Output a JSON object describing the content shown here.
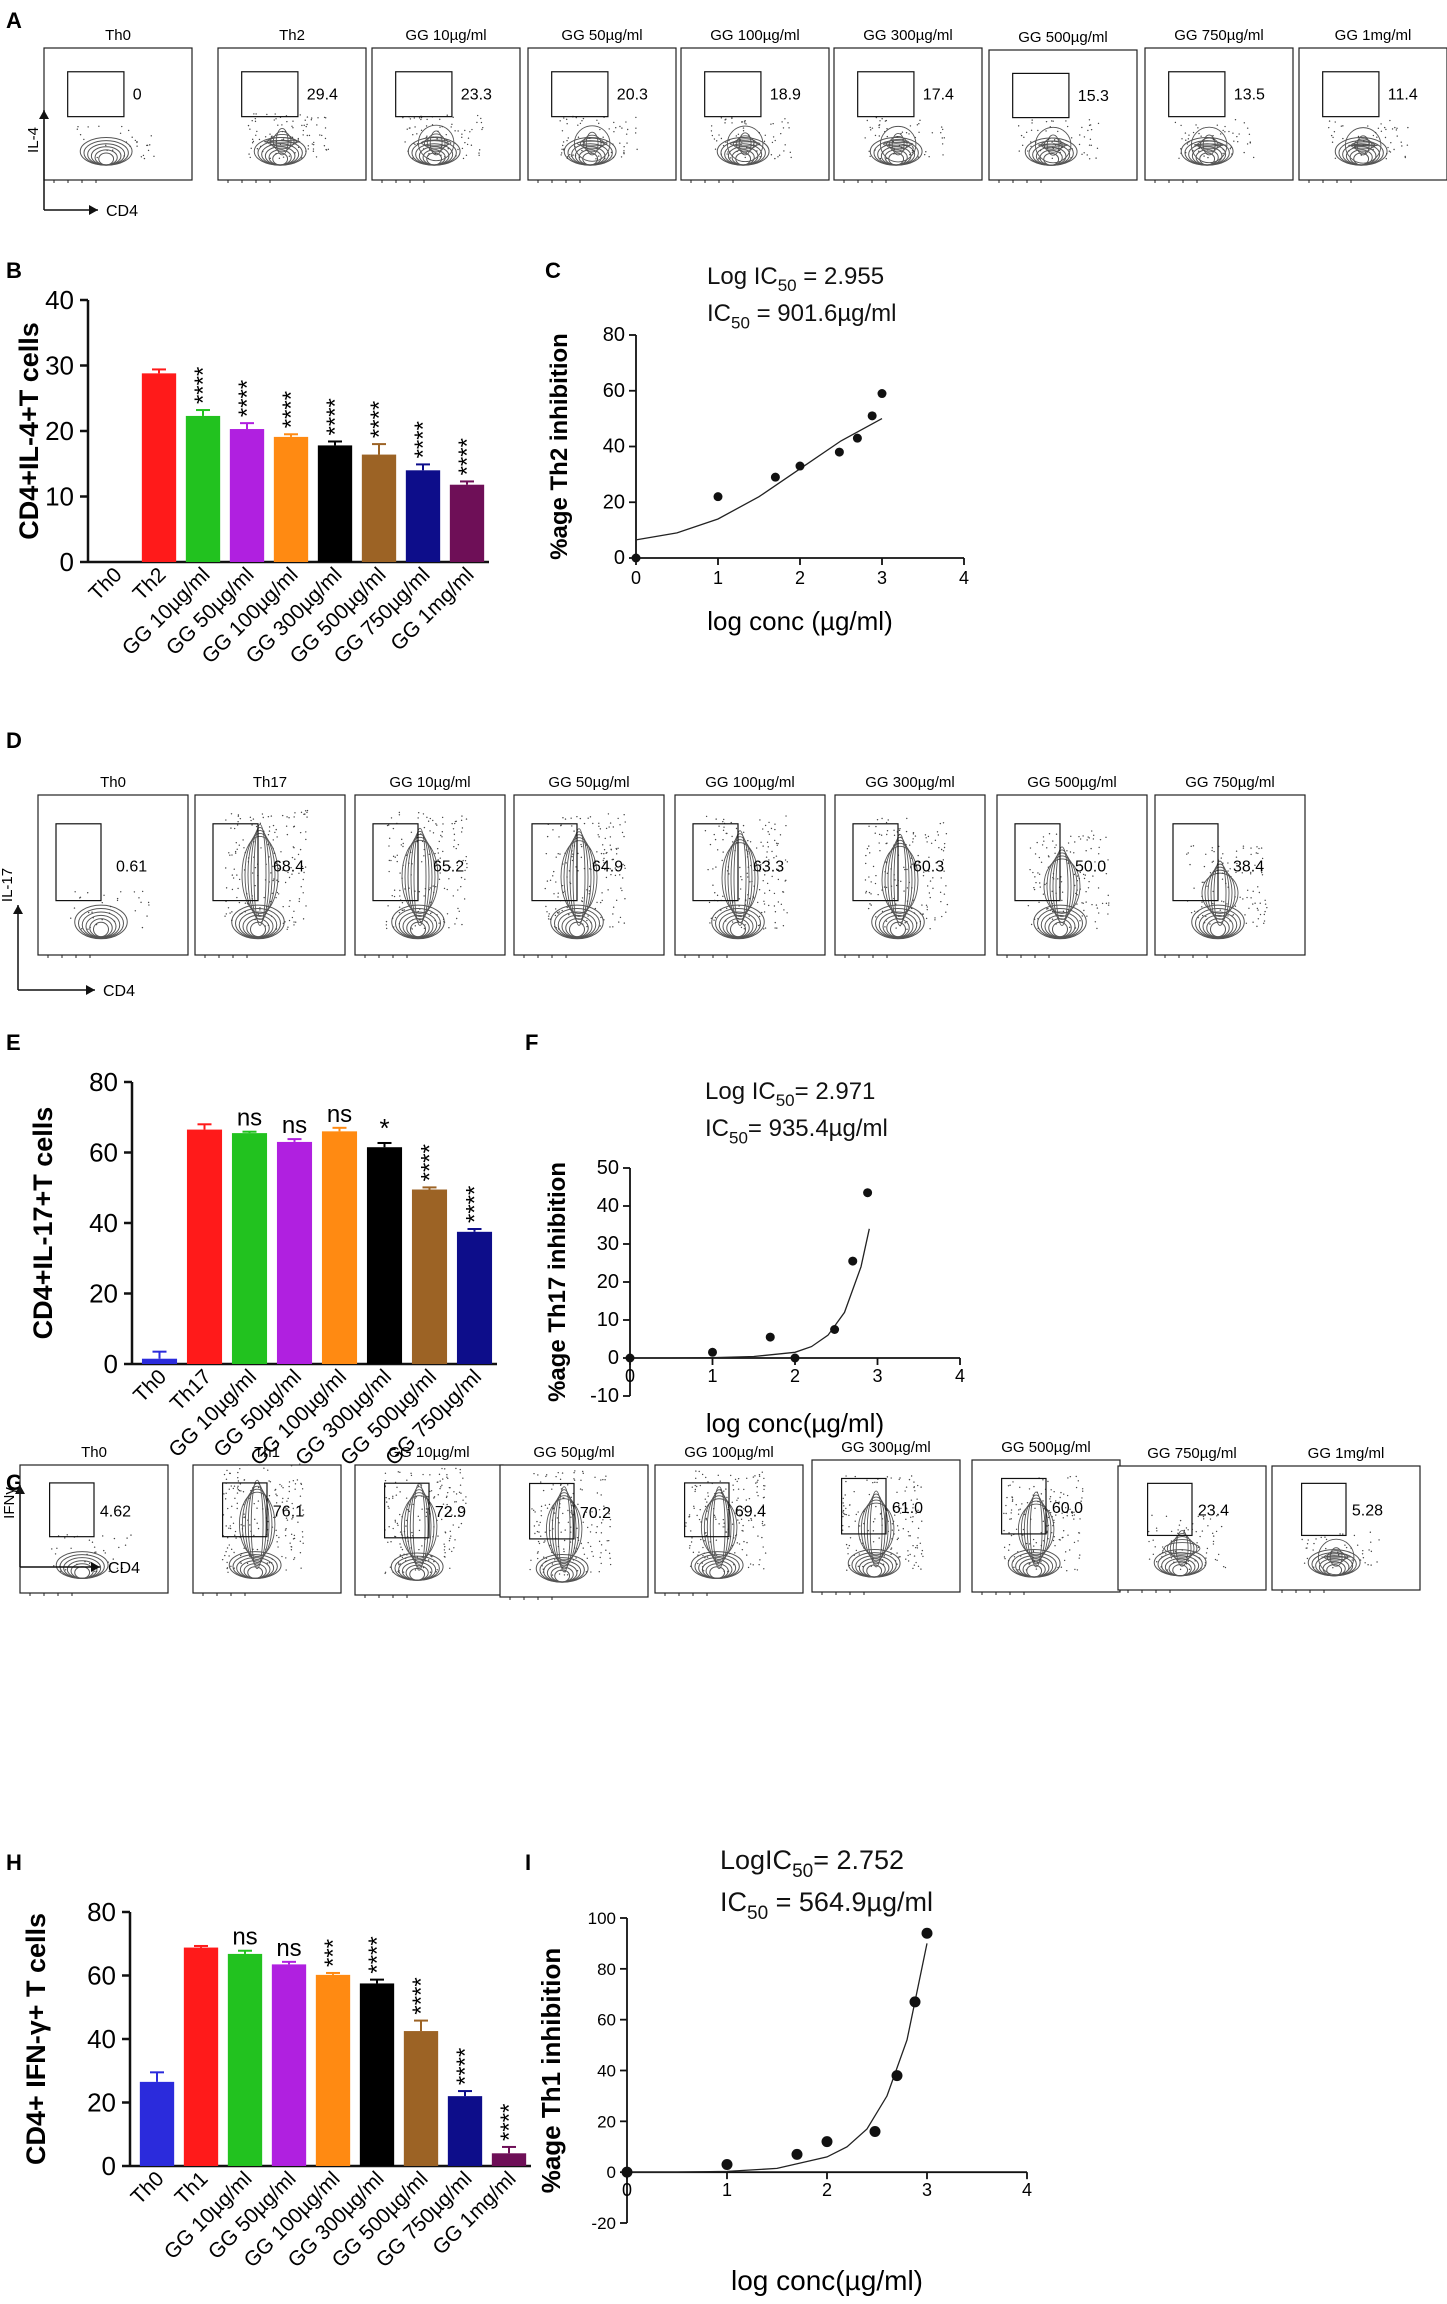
{
  "panel_labels": [
    "A",
    "B",
    "C",
    "D",
    "E",
    "F",
    "G",
    "H",
    "I"
  ],
  "colors": {
    "red": "#ff1a1a",
    "green": "#22c21f",
    "purple": "#b020e0",
    "orange": "#ff8a12",
    "black": "#000000",
    "brown": "#9c6325",
    "navy": "#0d0d8a",
    "maroon": "#6e0f57",
    "blue": "#2b2bdc",
    "flow_gray": "#555555"
  },
  "chart_data": [
    {
      "panel": "A",
      "type": "flow_cytometry",
      "y_marker": "IL-4",
      "x_marker": "CD4",
      "samples": [
        {
          "label": "Th0",
          "value": "0"
        },
        {
          "label": "Th2",
          "value": "29.4"
        },
        {
          "label": "GG 10µg/ml",
          "value": "23.3"
        },
        {
          "label": "GG 50µg/ml",
          "value": "20.3"
        },
        {
          "label": "GG 100µg/ml",
          "value": "18.9"
        },
        {
          "label": "GG 300µg/ml",
          "value": "17.4"
        },
        {
          "label": "GG 500µg/ml",
          "value": "15.3"
        },
        {
          "label": "GG 750µg/ml",
          "value": "13.5"
        },
        {
          "label": "GG 1mg/ml",
          "value": "11.4"
        }
      ]
    },
    {
      "panel": "B",
      "type": "bar",
      "ylabel": "CD4+IL-4+T cells",
      "ylim": [
        0,
        40
      ],
      "yticks": [
        "0",
        "10",
        "20",
        "30",
        "40"
      ],
      "categories": [
        "Th0",
        "Th2",
        "GG 10µg/ml",
        "GG 50µg/ml",
        "GG 100µg/ml",
        "GG 300µg/ml",
        "GG 500µg/ml",
        "GG 750µg/ml",
        "GG 1mg/ml"
      ],
      "values": [
        0,
        28.8,
        22.3,
        20.3,
        19.1,
        17.8,
        16.4,
        14.0,
        11.8
      ],
      "errors": [
        0,
        0.6,
        0.9,
        0.9,
        0.4,
        0.6,
        1.6,
        0.9,
        0.5
      ],
      "colors": [
        "#000000",
        "#ff1a1a",
        "#22c21f",
        "#b020e0",
        "#ff8a12",
        "#000000",
        "#9c6325",
        "#0d0d8a",
        "#6e0f57"
      ],
      "significance": [
        "",
        "",
        "****",
        "****",
        "****",
        "****",
        "****",
        "****",
        "****"
      ]
    },
    {
      "panel": "C",
      "type": "scatter",
      "title_lines": [
        "Log IC50 = 2.955",
        "IC50 = 901.6µg/ml"
      ],
      "xlabel": "log conc (µg/ml)",
      "ylabel": "%age Th2 inhibition",
      "xlim": [
        0,
        4
      ],
      "ylim": [
        0,
        80
      ],
      "xticks": [
        "0",
        "1",
        "2",
        "3",
        "4"
      ],
      "yticks": [
        "0",
        "20",
        "40",
        "60",
        "80"
      ],
      "x": [
        0,
        1,
        1.7,
        2,
        2.48,
        2.7,
        2.88,
        3.0
      ],
      "y": [
        0,
        22,
        29,
        33,
        38,
        43,
        51,
        59
      ],
      "fit_curve": {
        "x": [
          0,
          0.5,
          1,
          1.5,
          2,
          2.5,
          3
        ],
        "y": [
          6.5,
          9,
          14,
          22,
          32,
          42,
          50
        ]
      }
    },
    {
      "panel": "D",
      "type": "flow_cytometry",
      "y_marker": "IL-17",
      "x_marker": "CD4",
      "samples": [
        {
          "label": "Th0",
          "value": "0.61"
        },
        {
          "label": "Th17",
          "value": "68.4"
        },
        {
          "label": "GG 10µg/ml",
          "value": "65.2"
        },
        {
          "label": "GG 50µg/ml",
          "value": "64.9"
        },
        {
          "label": "GG 100µg/ml",
          "value": "63.3"
        },
        {
          "label": "GG 300µg/ml",
          "value": "60.3"
        },
        {
          "label": "GG 500µg/ml",
          "value": "50.0"
        },
        {
          "label": "GG 750µg/ml",
          "value": "38.4"
        }
      ]
    },
    {
      "panel": "E",
      "type": "bar",
      "ylabel": "CD4+IL-17+T cells",
      "ylim": [
        0,
        80
      ],
      "yticks": [
        "0",
        "20",
        "40",
        "60",
        "80"
      ],
      "categories": [
        "Th0",
        "Th17",
        "GG 10µg/ml",
        "GG 50µg/ml",
        "GG 100µg/ml",
        "GG 300µg/ml",
        "GG 500µg/ml",
        "GG 750µg/ml"
      ],
      "values": [
        1.5,
        66.5,
        65.5,
        63.0,
        66.0,
        61.5,
        49.5,
        37.5
      ],
      "errors": [
        2.0,
        1.5,
        0.4,
        0.8,
        1.0,
        1.2,
        0.6,
        0.8
      ],
      "colors": [
        "#2b2bdc",
        "#ff1a1a",
        "#22c21f",
        "#b020e0",
        "#ff8a12",
        "#000000",
        "#9c6325",
        "#0d0d8a"
      ],
      "significance": [
        "",
        "",
        "ns",
        "ns",
        "ns",
        "*",
        "****",
        "****"
      ]
    },
    {
      "panel": "F",
      "type": "scatter",
      "title_lines": [
        "Log IC50= 2.971",
        "IC50= 935.4µg/ml"
      ],
      "xlabel": "log conc(µg/ml)",
      "ylabel": "%age Th17 inhibition",
      "xlim": [
        0,
        4
      ],
      "ylim": [
        -10,
        50
      ],
      "xticks": [
        "0",
        "1",
        "2",
        "3",
        "4"
      ],
      "yticks": [
        "-10",
        "0",
        "10",
        "20",
        "30",
        "40",
        "50"
      ],
      "x": [
        0,
        1,
        1.7,
        2,
        2.48,
        2.7,
        2.88
      ],
      "y": [
        0,
        1.5,
        5.5,
        0,
        7.5,
        25.5,
        43.5
      ],
      "fit_curve": {
        "x": [
          0,
          0.5,
          1,
          1.5,
          2,
          2.2,
          2.4,
          2.6,
          2.8,
          2.9
        ],
        "y": [
          0,
          0,
          0.1,
          0.4,
          1.5,
          3,
          6,
          12,
          24,
          34
        ]
      }
    },
    {
      "panel": "G",
      "type": "flow_cytometry",
      "y_marker": "IFNγ",
      "x_marker": "CD4",
      "samples": [
        {
          "label": "Th0",
          "value": "4.62"
        },
        {
          "label": "Th1",
          "value": "76.1"
        },
        {
          "label": "GG 10µg/ml",
          "value": "72.9"
        },
        {
          "label": "GG 50µg/ml",
          "value": "70.2"
        },
        {
          "label": "GG 100µg/ml",
          "value": "69.4"
        },
        {
          "label": "GG 300µg/ml",
          "value": "61.0"
        },
        {
          "label": "GG 500µg/ml",
          "value": "60.0"
        },
        {
          "label": "GG 750µg/ml",
          "value": "23.4"
        },
        {
          "label": "GG 1mg/ml",
          "value": "5.28"
        }
      ]
    },
    {
      "panel": "H",
      "type": "bar",
      "ylabel": "CD4+ IFN-γ+ T cells",
      "ylim": [
        0,
        80
      ],
      "yticks": [
        "0",
        "20",
        "40",
        "60",
        "80"
      ],
      "categories": [
        "Th0",
        "Th1",
        "GG 10µg/ml",
        "GG 50µg/ml",
        "GG 100µg/ml",
        "GG 300µg/ml",
        "GG 500µg/ml",
        "GG 750µg/ml",
        "GG 1mg/ml"
      ],
      "values": [
        26.5,
        68.8,
        66.8,
        63.5,
        60.2,
        57.5,
        42.5,
        22.0,
        4.0
      ],
      "errors": [
        3.0,
        0.5,
        1.0,
        0.8,
        0.6,
        1.2,
        3.3,
        1.6,
        2.0
      ],
      "colors": [
        "#2b2bdc",
        "#ff1a1a",
        "#22c21f",
        "#b020e0",
        "#ff8a12",
        "#000000",
        "#9c6325",
        "#0d0d8a",
        "#6e0f57"
      ],
      "significance": [
        "",
        "",
        "ns",
        "ns",
        "***",
        "****",
        "****",
        "****",
        "****"
      ]
    },
    {
      "panel": "I",
      "type": "scatter",
      "title_lines": [
        "LogIC50= 2.752",
        "IC50 = 564.9µg/ml"
      ],
      "xlabel": "log conc(µg/ml)",
      "ylabel": "%age Th1 inhibition",
      "xlim": [
        0,
        4
      ],
      "ylim": [
        -20,
        100
      ],
      "xticks": [
        "0",
        "1",
        "2",
        "3",
        "4"
      ],
      "yticks": [
        "-20",
        "0",
        "20",
        "40",
        "60",
        "80",
        "100"
      ],
      "x": [
        0,
        1,
        1.7,
        2,
        2.48,
        2.7,
        2.88,
        3.0
      ],
      "y": [
        0,
        3,
        7,
        12,
        16,
        38,
        67,
        94
      ],
      "fit_curve": {
        "x": [
          0,
          0.5,
          1,
          1.5,
          2,
          2.2,
          2.4,
          2.6,
          2.8,
          3.0
        ],
        "y": [
          0,
          0,
          0.3,
          1.5,
          6,
          10,
          17,
          30,
          52,
          90
        ]
      }
    }
  ]
}
